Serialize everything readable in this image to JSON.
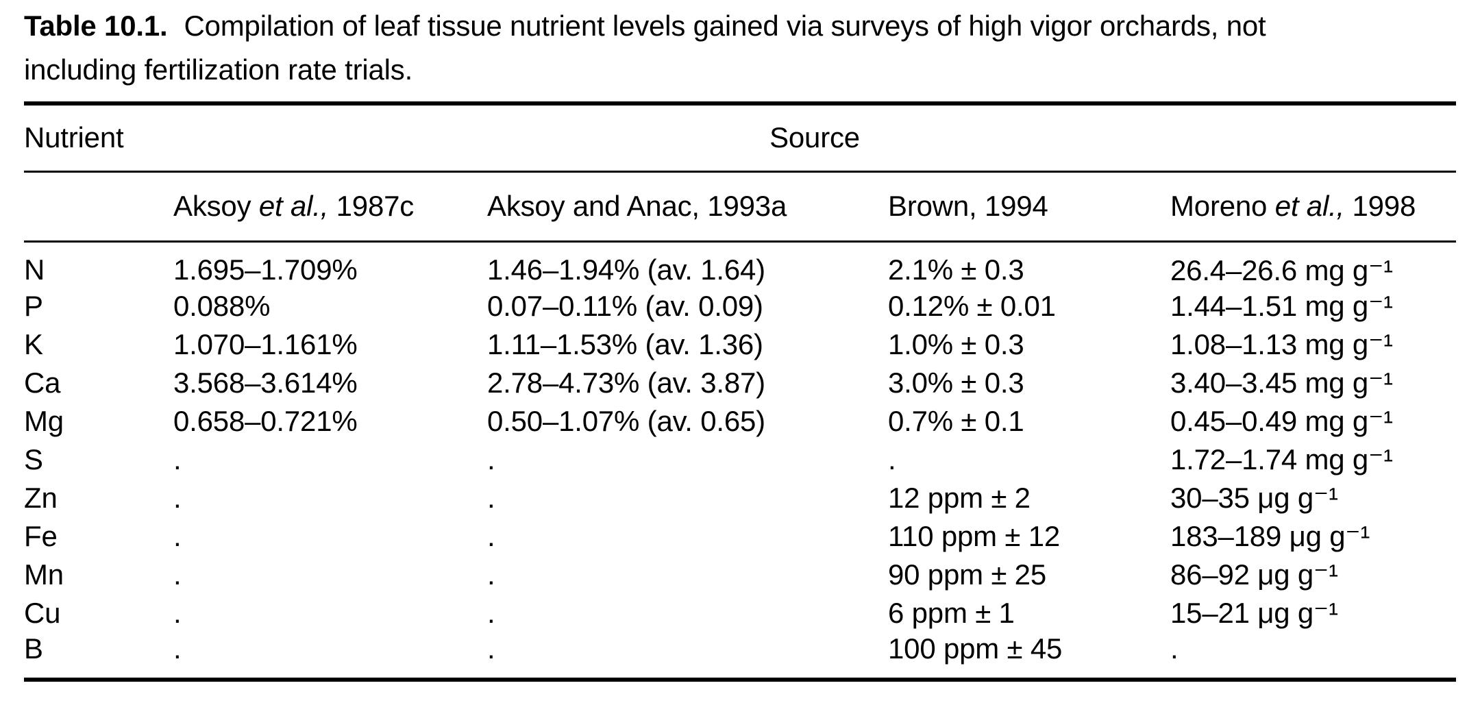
{
  "title": {
    "label": "Table 10.1.",
    "line1": "Compilation of leaf tissue nutrient levels gained via surveys of high vigor orchards, not",
    "line2": "including fertilization rate trials."
  },
  "table": {
    "corner_header": "Nutrient",
    "group_header": "Source",
    "empty_marker": ".",
    "columns": [
      {
        "pre": "Aksoy ",
        "italic": "et al.,",
        "post": " 1987c"
      },
      {
        "pre": "Aksoy and Anac, 1993a",
        "italic": "",
        "post": ""
      },
      {
        "pre": "Brown, 1994",
        "italic": "",
        "post": ""
      },
      {
        "pre": "Moreno ",
        "italic": "et al.,",
        "post": " 1998"
      }
    ],
    "rows": [
      {
        "nutrient": "N",
        "values": [
          "1.695–1.709%",
          "1.46–1.94% (av. 1.64)",
          "2.1% ± 0.3",
          "26.4–26.6 mg g⁻¹"
        ]
      },
      {
        "nutrient": "P",
        "values": [
          "0.088%",
          "0.07–0.11% (av. 0.09)",
          "0.12% ± 0.01",
          "1.44–1.51 mg g⁻¹"
        ]
      },
      {
        "nutrient": "K",
        "values": [
          "1.070–1.161%",
          "1.11–1.53% (av. 1.36)",
          "1.0% ± 0.3",
          "1.08–1.13 mg g⁻¹"
        ]
      },
      {
        "nutrient": "Ca",
        "values": [
          "3.568–3.614%",
          "2.78–4.73% (av. 3.87)",
          "3.0% ± 0.3",
          "3.40–3.45 mg g⁻¹"
        ]
      },
      {
        "nutrient": "Mg",
        "values": [
          "0.658–0.721%",
          "0.50–1.07% (av. 0.65)",
          "0.7% ± 0.1",
          "0.45–0.49 mg g⁻¹"
        ]
      },
      {
        "nutrient": "S",
        "values": [
          ".",
          ".",
          ".",
          "1.72–1.74 mg g⁻¹"
        ]
      },
      {
        "nutrient": "Zn",
        "values": [
          ".",
          ".",
          "12 ppm ± 2",
          "30–35 μg g⁻¹"
        ]
      },
      {
        "nutrient": "Fe",
        "values": [
          ".",
          ".",
          "110 ppm ± 12",
          "183–189 μg g⁻¹"
        ]
      },
      {
        "nutrient": "Mn",
        "values": [
          ".",
          ".",
          "90 ppm ± 25",
          "86–92 μg g⁻¹"
        ]
      },
      {
        "nutrient": "Cu",
        "values": [
          ".",
          ".",
          "6 ppm ± 1",
          "15–21 μg g⁻¹"
        ]
      },
      {
        "nutrient": "B",
        "values": [
          ".",
          ".",
          "100 ppm ± 45",
          "."
        ]
      }
    ]
  }
}
